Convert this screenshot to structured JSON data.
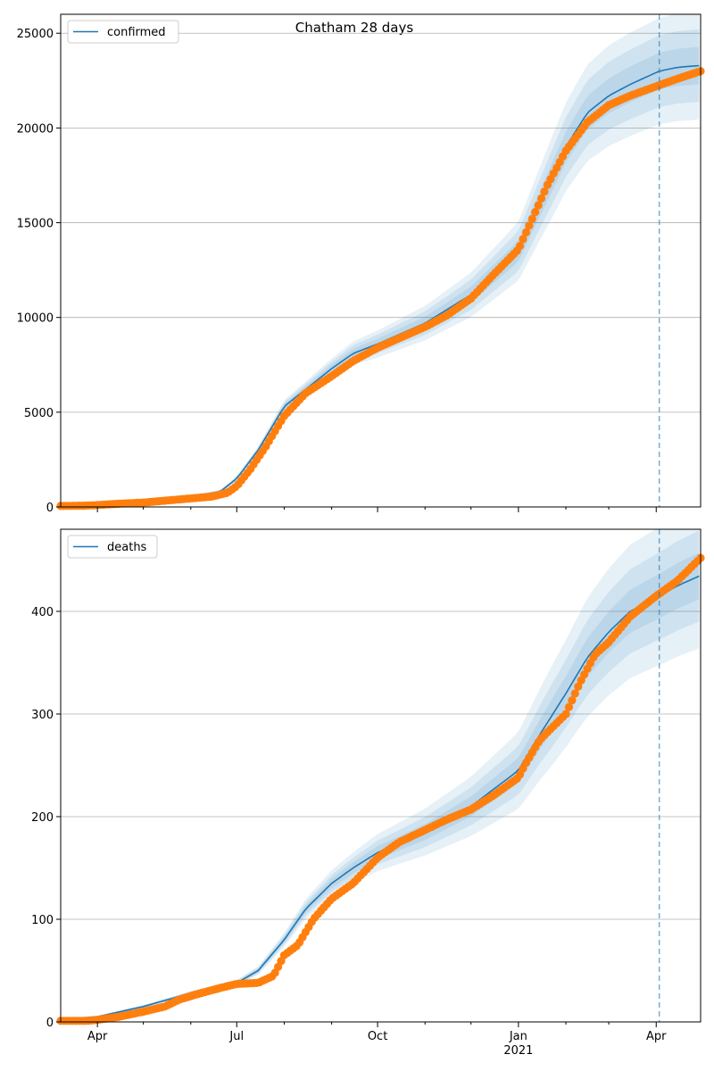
{
  "figure": {
    "title": "Chatham 28 days"
  },
  "colors": {
    "model_line": "#1f77b4",
    "observed": "#ff7f0e",
    "band": "#1f77b4",
    "grid": "#b0b0b0",
    "forecast_marker": "#1f77b4"
  },
  "x_axis": {
    "start": "2020-03-08",
    "end": "2021-04-30",
    "major_ticks": [
      {
        "date": "2020-04-01",
        "label": "Apr",
        "sublabel": ""
      },
      {
        "date": "2020-07-01",
        "label": "Jul",
        "sublabel": ""
      },
      {
        "date": "2020-10-01",
        "label": "Oct",
        "sublabel": ""
      },
      {
        "date": "2021-01-01",
        "label": "Jan",
        "sublabel": "2021"
      },
      {
        "date": "2021-04-01",
        "label": "Apr",
        "sublabel": ""
      }
    ],
    "minor_ticks": [
      "2020-05-01",
      "2020-06-01",
      "2020-08-01",
      "2020-09-01",
      "2020-11-01",
      "2020-12-01",
      "2021-02-01",
      "2021-03-01",
      "2021-05-01"
    ]
  },
  "forecast_start": "2021-04-03",
  "chart_data": [
    {
      "type": "line",
      "legend_label": "confirmed",
      "legend_position": "upper-left",
      "grid": "y-major",
      "ylim": [
        0,
        26000
      ],
      "yticks": [
        0,
        5000,
        10000,
        15000,
        20000,
        25000
      ],
      "model": {
        "name": "confirmed",
        "points": [
          [
            "2020-03-08",
            50
          ],
          [
            "2020-04-01",
            90
          ],
          [
            "2020-05-01",
            300
          ],
          [
            "2020-06-01",
            550
          ],
          [
            "2020-06-20",
            800
          ],
          [
            "2020-07-01",
            1500
          ],
          [
            "2020-07-15",
            3000
          ],
          [
            "2020-08-01",
            5300
          ],
          [
            "2020-08-15",
            6200
          ],
          [
            "2020-09-01",
            7300
          ],
          [
            "2020-09-15",
            8100
          ],
          [
            "2020-10-01",
            8600
          ],
          [
            "2020-11-01",
            9700
          ],
          [
            "2020-12-01",
            11200
          ],
          [
            "2021-01-01",
            13500
          ],
          [
            "2021-01-15",
            16000
          ],
          [
            "2021-02-01",
            19000
          ],
          [
            "2021-02-15",
            20800
          ],
          [
            "2021-03-01",
            21700
          ],
          [
            "2021-03-15",
            22300
          ],
          [
            "2021-04-03",
            23000
          ],
          [
            "2021-04-15",
            23200
          ],
          [
            "2021-04-30",
            23300
          ]
        ]
      },
      "bands_relative": [
        0.04,
        0.08,
        0.12
      ],
      "observed": {
        "name": "observed",
        "points": [
          [
            "2020-03-08",
            50
          ],
          [
            "2020-03-25",
            70
          ],
          [
            "2020-04-01",
            100
          ],
          [
            "2020-04-15",
            170
          ],
          [
            "2020-05-01",
            230
          ],
          [
            "2020-05-15",
            330
          ],
          [
            "2020-06-01",
            450
          ],
          [
            "2020-06-15",
            550
          ],
          [
            "2020-06-25",
            750
          ],
          [
            "2020-07-01",
            1100
          ],
          [
            "2020-07-10",
            2000
          ],
          [
            "2020-07-20",
            3200
          ],
          [
            "2020-08-01",
            4800
          ],
          [
            "2020-08-15",
            6000
          ],
          [
            "2020-09-01",
            6900
          ],
          [
            "2020-09-15",
            7700
          ],
          [
            "2020-10-01",
            8400
          ],
          [
            "2020-10-15",
            8900
          ],
          [
            "2020-11-01",
            9500
          ],
          [
            "2020-11-15",
            10100
          ],
          [
            "2020-12-01",
            11000
          ],
          [
            "2020-12-15",
            12200
          ],
          [
            "2021-01-01",
            13600
          ],
          [
            "2021-01-10",
            15200
          ],
          [
            "2021-01-20",
            17000
          ],
          [
            "2021-02-01",
            18800
          ],
          [
            "2021-02-15",
            20300
          ],
          [
            "2021-03-01",
            21200
          ],
          [
            "2021-03-15",
            21700
          ],
          [
            "2021-04-01",
            22200
          ],
          [
            "2021-04-15",
            22600
          ],
          [
            "2021-04-30",
            23000
          ]
        ]
      }
    },
    {
      "type": "line",
      "legend_label": "deaths",
      "legend_position": "upper-left",
      "grid": "y-major",
      "ylim": [
        0,
        480
      ],
      "yticks": [
        0,
        100,
        200,
        300,
        400
      ],
      "model": {
        "name": "deaths",
        "points": [
          [
            "2020-03-08",
            2
          ],
          [
            "2020-04-01",
            5
          ],
          [
            "2020-05-01",
            15
          ],
          [
            "2020-06-01",
            28
          ],
          [
            "2020-07-01",
            38
          ],
          [
            "2020-07-15",
            50
          ],
          [
            "2020-08-01",
            80
          ],
          [
            "2020-08-15",
            110
          ],
          [
            "2020-09-01",
            135
          ],
          [
            "2020-09-15",
            150
          ],
          [
            "2020-10-01",
            165
          ],
          [
            "2020-11-01",
            185
          ],
          [
            "2020-12-01",
            210
          ],
          [
            "2021-01-01",
            245
          ],
          [
            "2021-01-15",
            280
          ],
          [
            "2021-02-01",
            320
          ],
          [
            "2021-02-15",
            355
          ],
          [
            "2021-03-01",
            380
          ],
          [
            "2021-03-15",
            400
          ],
          [
            "2021-04-03",
            415
          ],
          [
            "2021-04-15",
            425
          ],
          [
            "2021-04-30",
            435
          ]
        ]
      },
      "bands_relative": [
        0.05,
        0.1,
        0.16
      ],
      "observed": {
        "name": "observed",
        "points": [
          [
            "2020-03-08",
            1
          ],
          [
            "2020-03-25",
            1
          ],
          [
            "2020-04-01",
            2
          ],
          [
            "2020-04-15",
            5
          ],
          [
            "2020-05-01",
            10
          ],
          [
            "2020-05-15",
            15
          ],
          [
            "2020-05-25",
            22
          ],
          [
            "2020-06-05",
            27
          ],
          [
            "2020-06-20",
            33
          ],
          [
            "2020-07-01",
            37
          ],
          [
            "2020-07-15",
            38
          ],
          [
            "2020-07-25",
            45
          ],
          [
            "2020-08-01",
            65
          ],
          [
            "2020-08-10",
            75
          ],
          [
            "2020-08-20",
            100
          ],
          [
            "2020-09-01",
            120
          ],
          [
            "2020-09-15",
            135
          ],
          [
            "2020-10-01",
            160
          ],
          [
            "2020-10-15",
            175
          ],
          [
            "2020-11-01",
            187
          ],
          [
            "2020-11-15",
            197
          ],
          [
            "2020-12-01",
            207
          ],
          [
            "2020-12-15",
            220
          ],
          [
            "2021-01-01",
            238
          ],
          [
            "2021-01-05",
            250
          ],
          [
            "2021-01-15",
            275
          ],
          [
            "2021-02-01",
            300
          ],
          [
            "2021-02-10",
            330
          ],
          [
            "2021-02-20",
            358
          ],
          [
            "2021-03-01",
            370
          ],
          [
            "2021-03-15",
            395
          ],
          [
            "2021-04-01",
            415
          ],
          [
            "2021-04-15",
            430
          ],
          [
            "2021-04-30",
            452
          ]
        ]
      }
    }
  ]
}
